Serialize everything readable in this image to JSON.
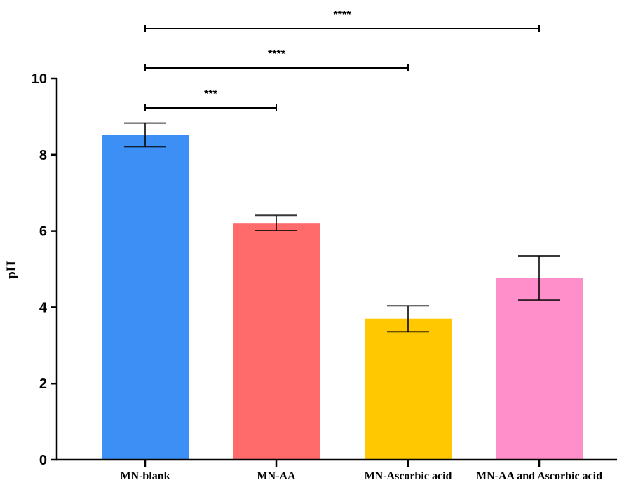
{
  "chart_data": {
    "type": "bar",
    "title": "",
    "xlabel": "",
    "ylabel": "pH",
    "ylim": [
      0,
      10
    ],
    "yticks": [
      "0",
      "2",
      "4",
      "6",
      "8",
      "10"
    ],
    "grid": false,
    "categories": [
      "MN-blank",
      "MN-AA",
      "MN-Ascorbic acid",
      "MN-AA and Ascorbic acid"
    ],
    "values": [
      8.52,
      6.21,
      3.7,
      4.77
    ],
    "error": [
      0.31,
      0.2,
      0.34,
      0.58
    ],
    "colors": [
      "#3c90f5",
      "#ff6b6b",
      "#ffc800",
      "#ff8fca"
    ],
    "significance": [
      {
        "from": "MN-blank",
        "to": "MN-AA",
        "label": "***"
      },
      {
        "from": "MN-blank",
        "to": "MN-Ascorbic acid",
        "label": "****"
      },
      {
        "from": "MN-blank",
        "to": "MN-AA and Ascorbic acid",
        "label": "****"
      }
    ]
  }
}
